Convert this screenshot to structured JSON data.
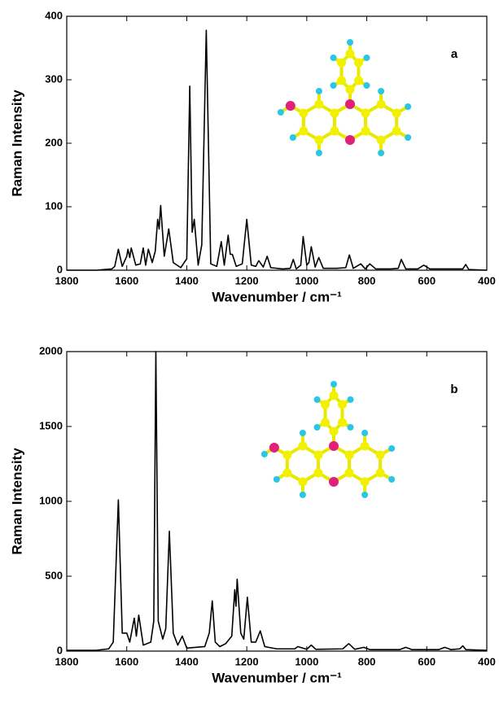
{
  "chart_data": [
    {
      "type": "line",
      "panel_label": "a",
      "x_label": "Wavenumber / cm⁻¹",
      "y_label": "Raman Intensity",
      "color": "#000000",
      "x": [
        1800,
        1700,
        1650,
        1640,
        1628,
        1615,
        1600,
        1596,
        1590,
        1585,
        1570,
        1555,
        1545,
        1537,
        1528,
        1515,
        1505,
        1497,
        1492,
        1487,
        1475,
        1460,
        1445,
        1420,
        1400,
        1390,
        1382,
        1375,
        1362,
        1350,
        1335,
        1320,
        1300,
        1285,
        1275,
        1262,
        1255,
        1248,
        1235,
        1215,
        1200,
        1185,
        1170,
        1160,
        1145,
        1132,
        1120,
        1080,
        1055,
        1045,
        1035,
        1020,
        1012,
        1000,
        993,
        985,
        972,
        960,
        945,
        900,
        870,
        858,
        845,
        820,
        805,
        790,
        770,
        720,
        695,
        685,
        670,
        630,
        610,
        590,
        520,
        480,
        470,
        460,
        400
      ],
      "values": [
        0,
        0,
        2,
        6,
        33,
        6,
        22,
        33,
        20,
        35,
        8,
        10,
        35,
        8,
        33,
        12,
        30,
        80,
        65,
        102,
        22,
        65,
        12,
        4,
        18,
        290,
        60,
        80,
        8,
        40,
        378,
        10,
        6,
        45,
        8,
        55,
        25,
        25,
        6,
        10,
        80,
        8,
        6,
        15,
        5,
        22,
        4,
        2,
        3,
        17,
        2,
        8,
        53,
        8,
        12,
        37,
        5,
        20,
        3,
        3,
        4,
        24,
        3,
        10,
        2,
        10,
        2,
        2,
        3,
        17,
        2,
        2,
        8,
        2,
        2,
        2,
        9,
        1,
        0
      ],
      "xlim": [
        1800,
        400
      ],
      "xticks": [
        1800,
        1600,
        1400,
        1200,
        1000,
        800,
        600,
        400
      ],
      "ylim": [
        0,
        400
      ],
      "yticks": [
        0,
        100,
        200,
        300,
        400
      ]
    },
    {
      "type": "line",
      "panel_label": "b",
      "x_label": "Wavenumber / cm⁻¹",
      "y_label": "Raman Intensity",
      "color": "#000000",
      "x": [
        1800,
        1700,
        1660,
        1645,
        1628,
        1615,
        1600,
        1590,
        1575,
        1568,
        1560,
        1545,
        1520,
        1510,
        1503,
        1495,
        1480,
        1470,
        1458,
        1445,
        1430,
        1415,
        1400,
        1340,
        1325,
        1315,
        1305,
        1290,
        1270,
        1250,
        1240,
        1236,
        1232,
        1220,
        1210,
        1198,
        1185,
        1170,
        1155,
        1140,
        1100,
        1040,
        1030,
        1000,
        985,
        970,
        880,
        860,
        840,
        810,
        790,
        690,
        670,
        650,
        560,
        540,
        520,
        490,
        480,
        470,
        400
      ],
      "values": [
        5,
        6,
        15,
        60,
        1010,
        120,
        120,
        60,
        220,
        100,
        240,
        40,
        60,
        200,
        2000,
        200,
        80,
        150,
        800,
        120,
        40,
        100,
        20,
        30,
        120,
        335,
        60,
        30,
        50,
        100,
        410,
        300,
        480,
        120,
        80,
        360,
        60,
        60,
        135,
        30,
        15,
        15,
        30,
        12,
        40,
        12,
        15,
        50,
        12,
        25,
        10,
        10,
        25,
        10,
        10,
        25,
        10,
        15,
        35,
        10,
        5
      ],
      "xlim": [
        1800,
        400
      ],
      "xticks": [
        1800,
        1600,
        1400,
        1200,
        1000,
        800,
        600,
        400
      ],
      "ylim": [
        0,
        2000
      ],
      "yticks": [
        0,
        500,
        1000,
        1500,
        2000
      ]
    }
  ]
}
